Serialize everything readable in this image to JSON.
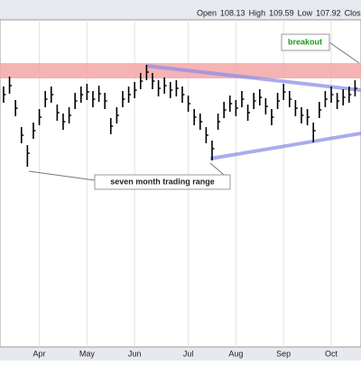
{
  "chart_data": {
    "type": "hlc",
    "header": [
      "Open",
      "108.13",
      "High",
      "109.59",
      "Low",
      "107.92",
      "Clos"
    ],
    "annotations": [
      "breakout",
      "seven month trading range"
    ],
    "high": [
      107.56,
      108.0,
      106.96,
      105.76,
      104.96,
      105.96,
      106.56,
      107.36,
      107.56,
      106.76,
      106.36,
      106.64,
      107.28,
      107.56,
      107.68,
      107.36,
      107.6,
      107.28,
      106.16,
      106.64,
      107.36,
      107.56,
      107.76,
      108.16,
      108.52,
      108.16,
      107.84,
      107.96,
      107.76,
      107.84,
      107.56,
      107.16,
      106.56,
      106.36,
      105.76,
      105.16,
      106.36,
      106.88,
      107.16,
      106.96,
      107.36,
      106.76,
      107.28,
      107.44,
      107.04,
      106.56,
      107.28,
      107.68,
      107.36,
      106.96,
      106.64,
      106.56,
      105.96,
      106.88,
      107.36,
      107.56,
      107.28,
      107.44,
      107.56,
      107.84
    ],
    "low": [
      106.84,
      107.24,
      106.24,
      105.04,
      104.0,
      105.24,
      105.84,
      106.64,
      106.84,
      106.04,
      105.64,
      105.92,
      106.56,
      106.84,
      106.96,
      106.64,
      106.88,
      106.56,
      105.44,
      105.92,
      106.64,
      106.84,
      107.04,
      107.44,
      107.84,
      107.44,
      107.12,
      107.24,
      107.04,
      107.12,
      106.84,
      106.44,
      105.84,
      105.64,
      105.04,
      104.28,
      105.64,
      106.16,
      106.44,
      106.24,
      106.64,
      106.04,
      106.56,
      106.72,
      106.32,
      105.84,
      106.56,
      106.96,
      106.64,
      106.24,
      105.92,
      105.84,
      105.08,
      106.16,
      106.64,
      106.84,
      106.56,
      106.72,
      106.84,
      107.12
    ],
    "close": [
      107.2,
      107.6,
      106.6,
      105.4,
      104.6,
      105.6,
      106.2,
      107.0,
      107.2,
      106.4,
      106.0,
      106.28,
      106.92,
      107.2,
      107.32,
      107.0,
      107.24,
      106.92,
      105.8,
      106.28,
      107.0,
      107.2,
      107.4,
      107.8,
      108.2,
      107.8,
      107.48,
      107.6,
      107.4,
      107.48,
      107.2,
      106.8,
      106.2,
      106.0,
      105.4,
      104.8,
      106.0,
      106.52,
      106.8,
      106.6,
      107.0,
      106.4,
      106.92,
      107.08,
      106.68,
      106.2,
      106.92,
      107.32,
      107.0,
      106.6,
      106.28,
      106.2,
      105.6,
      106.52,
      107.0,
      107.2,
      106.92,
      107.08,
      107.2,
      107.48
    ],
    "color": "#000000",
    "ylim": [
      96,
      110.6
    ],
    "xlim": [
      -0.6,
      60
    ],
    "xticks": [
      {
        "value": 6,
        "label": "Apr"
      },
      {
        "value": 14,
        "label": "May"
      },
      {
        "value": 22,
        "label": "Jun"
      },
      {
        "value": 31,
        "label": "Jul"
      },
      {
        "value": 39,
        "label": "Aug"
      },
      {
        "value": 47,
        "label": "Sep"
      },
      {
        "value": 55,
        "label": "Oct"
      }
    ],
    "grid": true
  }
}
